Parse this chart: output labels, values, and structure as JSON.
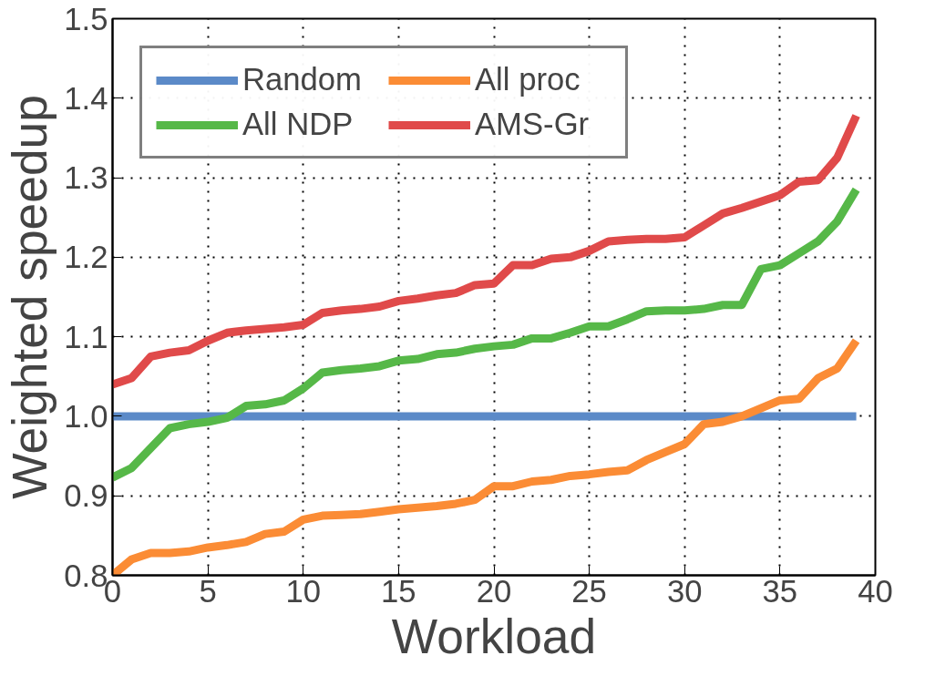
{
  "chart_data": {
    "type": "line",
    "xlabel": "Workload",
    "ylabel": "Weighted speedup",
    "x": [
      0,
      1,
      2,
      3,
      4,
      5,
      6,
      7,
      8,
      9,
      10,
      11,
      12,
      13,
      14,
      15,
      16,
      17,
      18,
      19,
      20,
      21,
      22,
      23,
      24,
      25,
      26,
      27,
      28,
      29,
      30,
      31,
      32,
      33,
      34,
      35,
      36,
      37,
      38,
      39
    ],
    "series": [
      {
        "name": "Random",
        "color": "#5b8ac8",
        "values": [
          1.0,
          1.0,
          1.0,
          1.0,
          1.0,
          1.0,
          1.0,
          1.0,
          1.0,
          1.0,
          1.0,
          1.0,
          1.0,
          1.0,
          1.0,
          1.0,
          1.0,
          1.0,
          1.0,
          1.0,
          1.0,
          1.0,
          1.0,
          1.0,
          1.0,
          1.0,
          1.0,
          1.0,
          1.0,
          1.0,
          1.0,
          1.0,
          1.0,
          1.0,
          1.0,
          1.0,
          1.0,
          1.0,
          1.0,
          1.0
        ]
      },
      {
        "name": "All NDP",
        "color": "#56b848",
        "values": [
          0.923,
          0.935,
          0.96,
          0.985,
          0.99,
          0.993,
          0.998,
          1.013,
          1.015,
          1.02,
          1.035,
          1.055,
          1.058,
          1.06,
          1.063,
          1.07,
          1.072,
          1.078,
          1.08,
          1.085,
          1.088,
          1.09,
          1.098,
          1.098,
          1.105,
          1.113,
          1.113,
          1.122,
          1.132,
          1.133,
          1.133,
          1.135,
          1.14,
          1.14,
          1.185,
          1.19,
          1.205,
          1.22,
          1.245,
          1.285
        ]
      },
      {
        "name": "All proc",
        "color": "#fb8c35",
        "values": [
          0.8,
          0.82,
          0.828,
          0.828,
          0.83,
          0.835,
          0.838,
          0.842,
          0.852,
          0.855,
          0.87,
          0.875,
          0.876,
          0.877,
          0.88,
          0.883,
          0.885,
          0.887,
          0.89,
          0.895,
          0.912,
          0.912,
          0.918,
          0.92,
          0.925,
          0.927,
          0.93,
          0.932,
          0.945,
          0.955,
          0.965,
          0.99,
          0.993,
          1.0,
          1.01,
          1.02,
          1.022,
          1.048,
          1.06,
          1.095
        ]
      },
      {
        "name": "AMS-Gr",
        "color": "#e04a4a",
        "values": [
          1.04,
          1.048,
          1.075,
          1.08,
          1.083,
          1.095,
          1.105,
          1.108,
          1.11,
          1.112,
          1.115,
          1.13,
          1.133,
          1.135,
          1.138,
          1.145,
          1.148,
          1.152,
          1.155,
          1.165,
          1.167,
          1.19,
          1.19,
          1.198,
          1.2,
          1.208,
          1.22,
          1.222,
          1.223,
          1.223,
          1.225,
          1.24,
          1.255,
          1.262,
          1.27,
          1.278,
          1.295,
          1.297,
          1.325,
          1.378
        ]
      }
    ],
    "xlim": [
      0,
      40
    ],
    "xticks": [
      0,
      5,
      10,
      15,
      20,
      25,
      30,
      35,
      40
    ],
    "ylim": [
      0.8,
      1.5
    ],
    "yticks": [
      {
        "value": 0.8,
        "label": "0.8"
      },
      {
        "value": 0.9,
        "label": "0.9"
      },
      {
        "value": 1.0,
        "label": "1.0"
      },
      {
        "value": 1.1,
        "label": "1.1"
      },
      {
        "value": 1.2,
        "label": "1.2"
      },
      {
        "value": 1.3,
        "label": "1.3"
      },
      {
        "value": 1.4,
        "label": "1.4"
      },
      {
        "value": 1.5,
        "label": "1.5"
      }
    ],
    "grid": true,
    "legend": "top left",
    "marker": "none",
    "line_style": "solid"
  }
}
